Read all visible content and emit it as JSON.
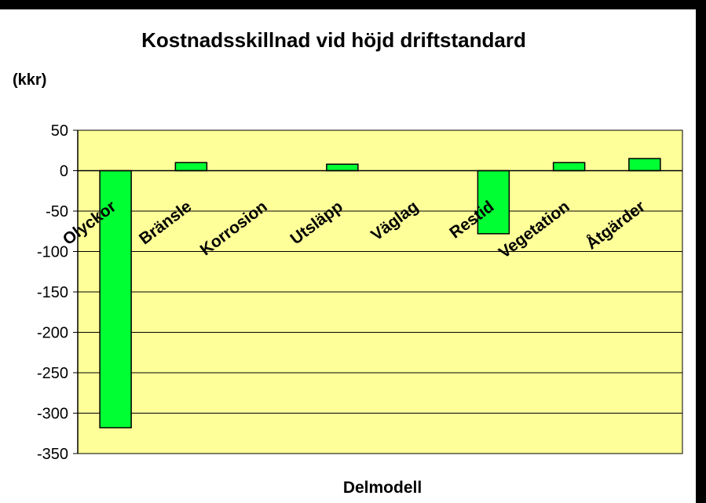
{
  "chart_data": {
    "type": "bar",
    "title": "Kostnadsskillnad vid höjd driftstandard",
    "ylabel": "(kkr)",
    "xlabel": "Delmodell",
    "categories": [
      "Olyckor",
      "Bränsle",
      "Korrosion",
      "Utsläpp",
      "Väglag",
      "Restid",
      "Vegetation",
      "Åtgärder"
    ],
    "values": [
      -318,
      10,
      0,
      8,
      0,
      -78,
      10,
      15
    ],
    "ylim": [
      -350,
      50
    ],
    "yticks": [
      50,
      0,
      -50,
      -100,
      -150,
      -200,
      -250,
      -300,
      -350
    ],
    "grid": true,
    "legend": "none",
    "colors": {
      "plot_background": "#ffff99",
      "bar_fill": "#00ff33",
      "gridline": "#000000"
    }
  }
}
